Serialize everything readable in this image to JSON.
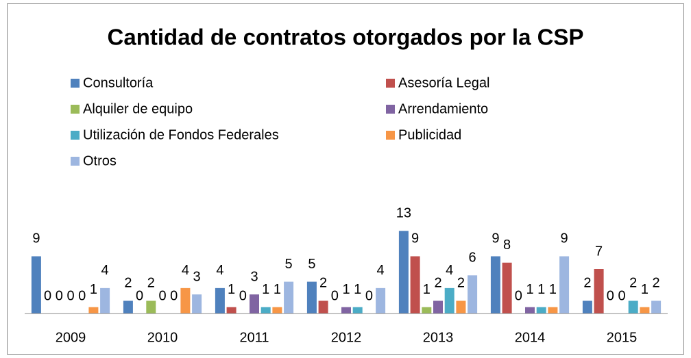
{
  "chart_data": {
    "type": "bar",
    "title": "Cantidad de contratos otorgados por la CSP",
    "categories": [
      "2009",
      "2010",
      "2011",
      "2012",
      "2013",
      "2014",
      "2015"
    ],
    "series": [
      {
        "name": "Consultoría",
        "color": "#4f81bd",
        "values": [
          9,
          2,
          4,
          5,
          13,
          9,
          2
        ]
      },
      {
        "name": "Asesoría Legal",
        "color": "#c0504d",
        "values": [
          0,
          0,
          1,
          2,
          9,
          8,
          7
        ]
      },
      {
        "name": "Alquiler de equipo",
        "color": "#9bbb59",
        "values": [
          0,
          2,
          0,
          0,
          1,
          0,
          0
        ]
      },
      {
        "name": "Arrendamiento",
        "color": "#8064a2",
        "values": [
          0,
          0,
          3,
          1,
          2,
          1,
          0
        ]
      },
      {
        "name": "Utilización de Fondos Federales",
        "color": "#4bacc6",
        "values": [
          0,
          0,
          1,
          1,
          4,
          1,
          2
        ]
      },
      {
        "name": "Publicidad",
        "color": "#f79646",
        "values": [
          1,
          4,
          1,
          0,
          2,
          1,
          1
        ]
      },
      {
        "name": "Otros",
        "color": "#9db6e0",
        "values": [
          4,
          3,
          5,
          4,
          6,
          9,
          2
        ]
      }
    ],
    "ylim": [
      0,
      14
    ],
    "legend": "top"
  }
}
